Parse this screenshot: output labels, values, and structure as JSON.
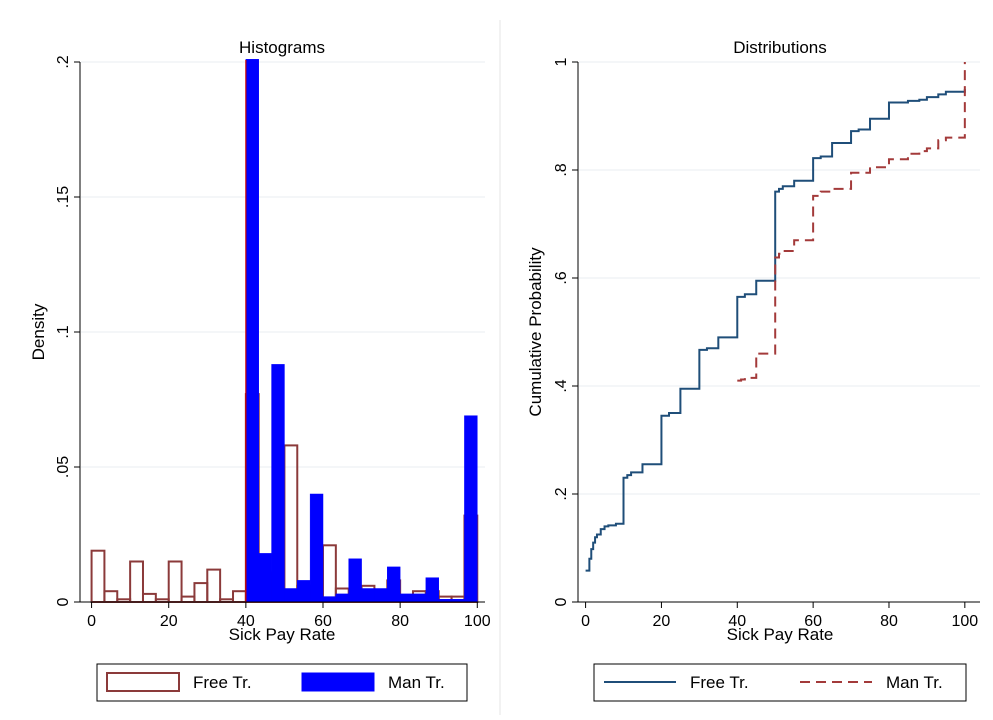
{
  "chart_data": [
    {
      "type": "bar",
      "title": "Histograms",
      "xlabel": "Sick Pay Rate",
      "ylabel": "Density",
      "xlim": [
        -3,
        102
      ],
      "ylim": [
        0,
        0.2
      ],
      "xticks": [
        0,
        20,
        40,
        60,
        80,
        100
      ],
      "xtick_labels": [
        "0",
        "20",
        "40",
        "60",
        "80",
        "100"
      ],
      "yticks": [
        0,
        0.05,
        0.1,
        0.15,
        0.2
      ],
      "ytick_labels": [
        "0",
        ".05",
        ".1",
        ".15",
        ".2"
      ],
      "grid": true,
      "legend": "bottom",
      "reference_line_x": 40,
      "bin_width": 3.33,
      "series": [
        {
          "name": "Free Tr.",
          "style": "outline",
          "color": "#8b3a3a",
          "x": [
            0,
            3.33,
            6.67,
            10,
            13.33,
            16.67,
            20,
            23.33,
            26.67,
            30,
            33.33,
            36.67,
            40,
            43.33,
            46.67,
            50,
            53.33,
            56.67,
            60,
            63.33,
            66.67,
            70,
            73.33,
            76.67,
            80,
            83.33,
            86.67,
            90,
            93.33,
            96.67
          ],
          "values": [
            0.019,
            0.004,
            0.001,
            0.015,
            0.003,
            0.001,
            0.015,
            0.002,
            0.007,
            0.012,
            0.001,
            0.004,
            0.077,
            0.011,
            0.002,
            0.058,
            0.006,
            0.001,
            0.021,
            0.005,
            0.002,
            0.006,
            0.002,
            0.008,
            0.002,
            0.004,
            0.004,
            0.002,
            0.002,
            0.032
          ]
        },
        {
          "name": "Man Tr.",
          "style": "filled",
          "color": "#0000ff",
          "x": [
            40,
            43.33,
            46.67,
            50,
            53.33,
            56.67,
            60,
            63.33,
            66.67,
            70,
            73.33,
            76.67,
            80,
            83.33,
            86.67,
            90,
            93.33,
            96.67
          ],
          "values": [
            0.201,
            0.018,
            0.088,
            0.005,
            0.008,
            0.04,
            0.002,
            0.003,
            0.016,
            0.005,
            0.005,
            0.013,
            0.003,
            0.003,
            0.009,
            0.001,
            0.001,
            0.069
          ]
        }
      ]
    },
    {
      "type": "line",
      "step": true,
      "title": "Distributions",
      "xlabel": "Sick Pay Rate",
      "ylabel": "Cumulative Probability",
      "xlim": [
        -2,
        104
      ],
      "ylim": [
        0,
        1
      ],
      "xticks": [
        0,
        20,
        40,
        60,
        80,
        100
      ],
      "xtick_labels": [
        "0",
        "20",
        "40",
        "60",
        "80",
        "100"
      ],
      "yticks": [
        0,
        0.2,
        0.4,
        0.6,
        0.8,
        1
      ],
      "ytick_labels": [
        "0",
        ".2",
        ".4",
        ".6",
        ".8",
        "1"
      ],
      "grid": true,
      "legend": "bottom",
      "series": [
        {
          "name": "Free Tr.",
          "style": "solid",
          "color": "#1f4e79",
          "x": [
            0,
            1,
            1.5,
            2,
            2.5,
            3,
            4,
            5,
            6,
            8,
            10,
            11,
            12,
            15,
            20,
            22,
            25,
            30,
            32,
            35,
            40,
            42,
            45,
            50,
            51,
            52,
            55,
            60,
            62,
            65,
            70,
            72,
            75,
            80,
            85,
            88,
            90,
            93,
            95,
            100
          ],
          "y": [
            0.058,
            0.08,
            0.098,
            0.11,
            0.12,
            0.125,
            0.135,
            0.14,
            0.142,
            0.145,
            0.23,
            0.235,
            0.24,
            0.255,
            0.345,
            0.35,
            0.395,
            0.467,
            0.47,
            0.49,
            0.565,
            0.57,
            0.595,
            0.76,
            0.765,
            0.77,
            0.78,
            0.822,
            0.825,
            0.85,
            0.872,
            0.875,
            0.895,
            0.925,
            0.928,
            0.93,
            0.935,
            0.94,
            0.945,
            0.95
          ]
        },
        {
          "name": "Man Tr.",
          "style": "dashed",
          "color": "#a33a3a",
          "x": [
            40,
            41,
            42,
            45,
            50,
            51,
            52,
            55,
            60,
            62,
            65,
            70,
            75,
            80,
            85,
            88,
            90,
            93,
            95,
            100
          ],
          "y": [
            0.41,
            0.412,
            0.415,
            0.46,
            0.638,
            0.645,
            0.65,
            0.67,
            0.752,
            0.76,
            0.765,
            0.795,
            0.805,
            0.82,
            0.83,
            0.835,
            0.84,
            0.855,
            0.86,
            1.0
          ]
        }
      ]
    }
  ]
}
